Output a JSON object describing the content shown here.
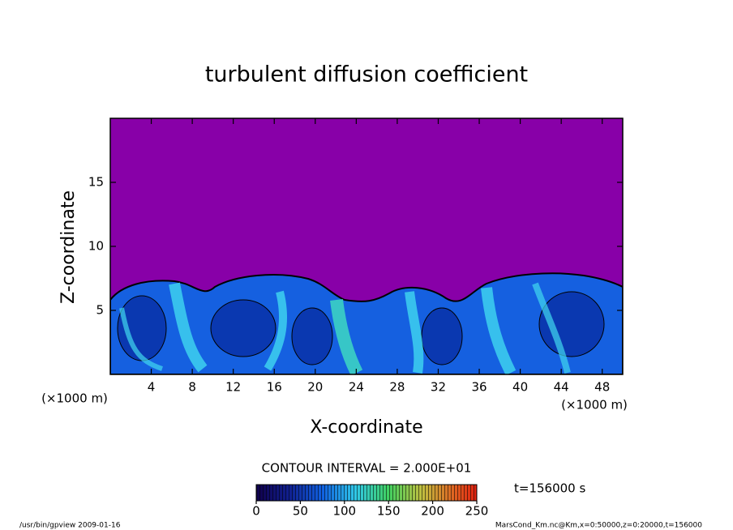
{
  "chart_data": {
    "type": "contour",
    "title": "turbulent diffusion coefficient",
    "xlabel": "X-coordinate",
    "ylabel": "Z-coordinate",
    "x_unit": "(×1000 m)",
    "y_unit": "(×1000 m)",
    "xlim": [
      0,
      50
    ],
    "xticks": [
      4,
      8,
      12,
      16,
      20,
      24,
      28,
      32,
      36,
      40,
      44,
      48
    ],
    "ylim": [
      0,
      20
    ],
    "yticks": [
      5,
      10,
      15
    ],
    "contour_interval": "CONTOUR INTERVAL = 2.000E+01",
    "colorbar": {
      "clim": [
        0,
        250
      ],
      "ticks": [
        0,
        50,
        100,
        150,
        200,
        250
      ]
    },
    "time": "t=156000 s",
    "footer_left": "/usr/bin/gpview   2009-01-16",
    "footer_right": "MarsCond_Km.nc@Km,x=0:50000,z=0:20000,t=156000"
  }
}
